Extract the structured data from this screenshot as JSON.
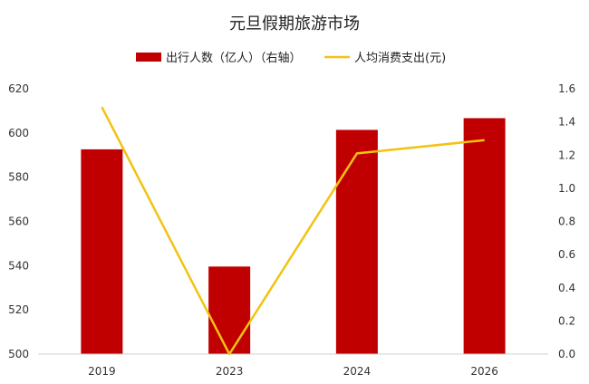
{
  "chart_data": {
    "type": "bar",
    "title": "元旦假期旅游市场",
    "categories": [
      "2019",
      "2023",
      "2024",
      "2026"
    ],
    "series": [
      {
        "name": "出行人数（亿人）（右轴）",
        "type": "bar",
        "axis": "left",
        "color": "#c00000",
        "values": [
          592.6,
          539.6,
          601.4,
          606.7
        ]
      },
      {
        "name": "人均消费支出(元)",
        "type": "line",
        "axis": "right",
        "color": "#f2c311",
        "values": [
          1.49,
          0.0,
          1.21,
          1.29
        ]
      }
    ],
    "y_left": {
      "lim": [
        500,
        620
      ],
      "ticks": [
        "500",
        "520",
        "540",
        "560",
        "580",
        "600",
        "620"
      ]
    },
    "y_right": {
      "lim": [
        0,
        1.6
      ],
      "ticks": [
        "0.0",
        "0.2",
        "0.4",
        "0.6",
        "0.8",
        "1.0",
        "1.2",
        "1.4",
        "1.6"
      ]
    },
    "legend_position": "top",
    "grid": false
  }
}
